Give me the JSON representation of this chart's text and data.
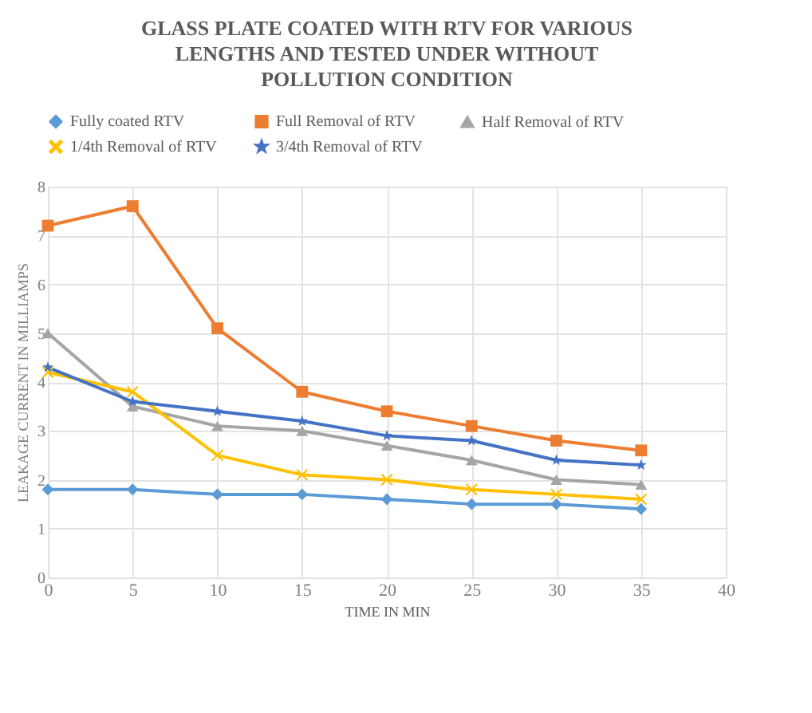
{
  "chart_data": {
    "type": "line",
    "title": "GLASS PLATE COATED WITH RTV FOR VARIOUS LENGTHS AND TESTED UNDER WITHOUT POLLUTION CONDITION",
    "xlabel": "TIME IN MIN",
    "ylabel": "LEAKAGE CURRENT IN MILLIAMPS",
    "x": [
      0,
      5,
      10,
      15,
      20,
      25,
      30,
      35
    ],
    "series": [
      {
        "name": "Fully coated RTV",
        "color": "#5b9bd5",
        "marker": "diamond",
        "values": [
          1.8,
          1.8,
          1.7,
          1.7,
          1.6,
          1.5,
          1.5,
          1.4
        ]
      },
      {
        "name": "Full Removal of RTV",
        "color": "#ed7d31",
        "marker": "square",
        "values": [
          7.2,
          7.6,
          5.1,
          3.8,
          3.4,
          3.1,
          2.8,
          2.6
        ]
      },
      {
        "name": "Half Removal of RTV",
        "color": "#a5a5a5",
        "marker": "triangle",
        "values": [
          5.0,
          3.5,
          3.1,
          3.0,
          2.7,
          2.4,
          2.0,
          1.9
        ]
      },
      {
        "name": "1/4th  Removal of RTV",
        "color": "#ffc000",
        "marker": "cross",
        "values": [
          4.2,
          3.8,
          2.5,
          2.1,
          2.0,
          1.8,
          1.7,
          1.6
        ]
      },
      {
        "name": "3/4th  Removal of RTV",
        "color": "#4472c4",
        "marker": "star",
        "values": [
          4.3,
          3.6,
          3.4,
          3.2,
          2.9,
          2.8,
          2.4,
          2.3
        ]
      }
    ],
    "xlim": [
      0,
      40
    ],
    "xticks": [
      0,
      5,
      10,
      15,
      20,
      25,
      30,
      35,
      40
    ],
    "ylim": [
      0,
      8
    ],
    "yticks": [
      0,
      1,
      2,
      3,
      4,
      5,
      6,
      7,
      8
    ],
    "grid": true,
    "legend": "top",
    "line_style": "solid"
  }
}
